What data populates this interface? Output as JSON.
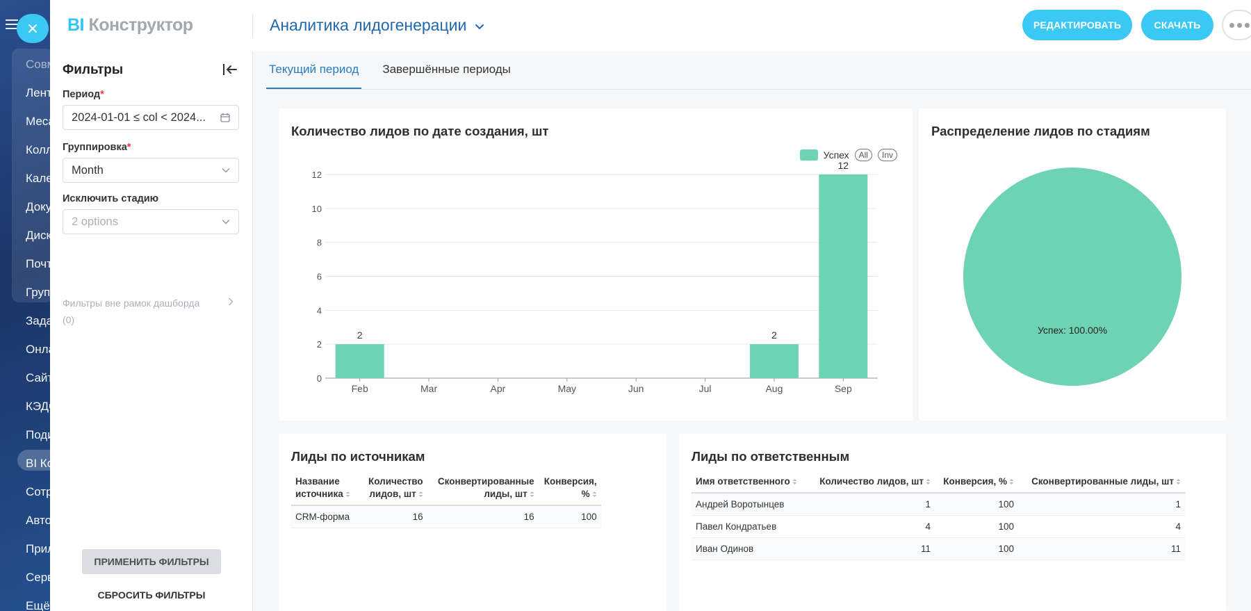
{
  "portal": {
    "menu": [
      "Совм",
      "Лент",
      "Меса",
      "Колл",
      "Кале",
      "Доку",
      "Диск",
      "Почт",
      "Груп",
      "Зада",
      "Онла",
      "Сайт",
      "КЭДО",
      "Поди",
      "BI Ко",
      "Сотр",
      "Авто",
      "Прил",
      "Серв",
      "Ещё"
    ]
  },
  "header": {
    "logo_bi": "BI",
    "logo_name": "Конструктор",
    "dashboard_title": "Аналитика лидогенерации",
    "edit_label": "РЕДАКТИРОВАТЬ",
    "download_label": "СКАЧАТЬ"
  },
  "filters": {
    "title": "Фильтры",
    "period_label": "Период",
    "period_value": "2024-01-01 ≤ col < 2024...",
    "grouping_label": "Группировка",
    "grouping_value": "Month",
    "exclude_label": "Исключить стадию",
    "exclude_placeholder": "2 options",
    "outside_label": "Фильтры вне рамок дашборда",
    "outside_count": "(0)",
    "apply_label": "ПРИМЕНИТЬ ФИЛЬТРЫ",
    "reset_label": "СБРОСИТЬ ФИЛЬТРЫ"
  },
  "tabs": [
    {
      "label": "Текущий период",
      "active": true
    },
    {
      "label": "Завершённые периоды",
      "active": false
    }
  ],
  "colors": {
    "accent": "#3bc8f5",
    "series": "#6dd3b3"
  },
  "chart_data": [
    {
      "type": "bar",
      "title": "Количество лидов по дате создания, шт",
      "categories": [
        "Feb",
        "Mar",
        "Apr",
        "May",
        "Jun",
        "Jul",
        "Aug",
        "Sep"
      ],
      "series": [
        {
          "name": "Успех",
          "values": [
            2,
            0,
            0,
            0,
            0,
            0,
            2,
            12
          ]
        }
      ],
      "ylim": [
        0,
        12
      ],
      "yticks": [
        0,
        2,
        4,
        6,
        8,
        10,
        12
      ],
      "legend_extra": [
        "All",
        "Inv"
      ],
      "legend_position": "top-right",
      "grid": true
    },
    {
      "type": "pie",
      "title": "Распределение лидов по стадиям",
      "slices": [
        {
          "name": "Успех",
          "value": 100.0,
          "label": "Успех: 100.00%"
        }
      ]
    }
  ],
  "sources_table": {
    "title": "Лиды по источникам",
    "columns": [
      {
        "lines": [
          "Название",
          "источника"
        ],
        "num": false
      },
      {
        "lines": [
          "Количество",
          "лидов, шт"
        ],
        "num": true
      },
      {
        "lines": [
          "Сконвертированные",
          "лиды, шт"
        ],
        "num": true
      },
      {
        "lines": [
          "Конверсия,",
          "%"
        ],
        "num": true
      }
    ],
    "rows": [
      [
        "CRM-форма",
        "16",
        "16",
        "100"
      ]
    ]
  },
  "owners_table": {
    "title": "Лиды по ответственным",
    "columns": [
      {
        "lines": [
          "Имя ответственного"
        ],
        "num": false
      },
      {
        "lines": [
          "Количество лидов, шт"
        ],
        "num": true
      },
      {
        "lines": [
          "Конверсия, %"
        ],
        "num": true
      },
      {
        "lines": [
          "Сконвертированные лиды, шт"
        ],
        "num": true
      }
    ],
    "rows": [
      [
        "Андрей Воротынцев",
        "1",
        "100",
        "1"
      ],
      [
        "Павел Кондратьев",
        "4",
        "100",
        "4"
      ],
      [
        "Иван Одинов",
        "11",
        "100",
        "11"
      ]
    ]
  }
}
